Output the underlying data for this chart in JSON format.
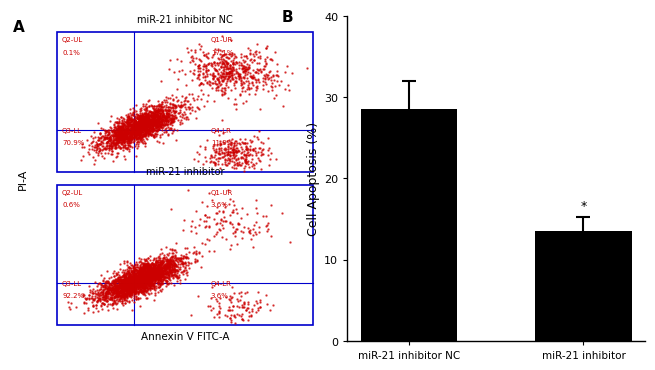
{
  "panel_B": {
    "categories": [
      "miR-21 inhibitor NC",
      "miR-21 inhibitor"
    ],
    "values": [
      28.5,
      13.5
    ],
    "errors": [
      3.5,
      1.8
    ],
    "bar_color": "#000000",
    "ylabel": "Cell Apoptosis (%)",
    "ylim": [
      0,
      40
    ],
    "yticks": [
      0,
      10,
      20,
      30,
      40
    ],
    "significance": "*",
    "sig_bar_index": 1
  },
  "panel_A": {
    "label_top": "miR-21 inhibitor NC",
    "label_bottom": "miR-21 inhibitor",
    "xlabel": "Annexin V FITC-A",
    "ylabel": "PI-A",
    "panel_label": "A",
    "background_color": "#ffffff",
    "dot_color": "#cc0000",
    "border_color": "#0000cc",
    "top_quadrants": [
      "Q2-UL\n0.1%",
      "Q1-UR\n17.1%",
      "Q3-LL\n70.9%",
      "Q4-LR\n11.9%"
    ],
    "bottom_quadrants": [
      "Q2-UL\n0.6%",
      "Q1-UR\n3.6%",
      "Q3-LL\n92.2%",
      "Q4-LR\n3.6%"
    ]
  },
  "panel_B_label": "B",
  "figure_bg": "#ffffff"
}
